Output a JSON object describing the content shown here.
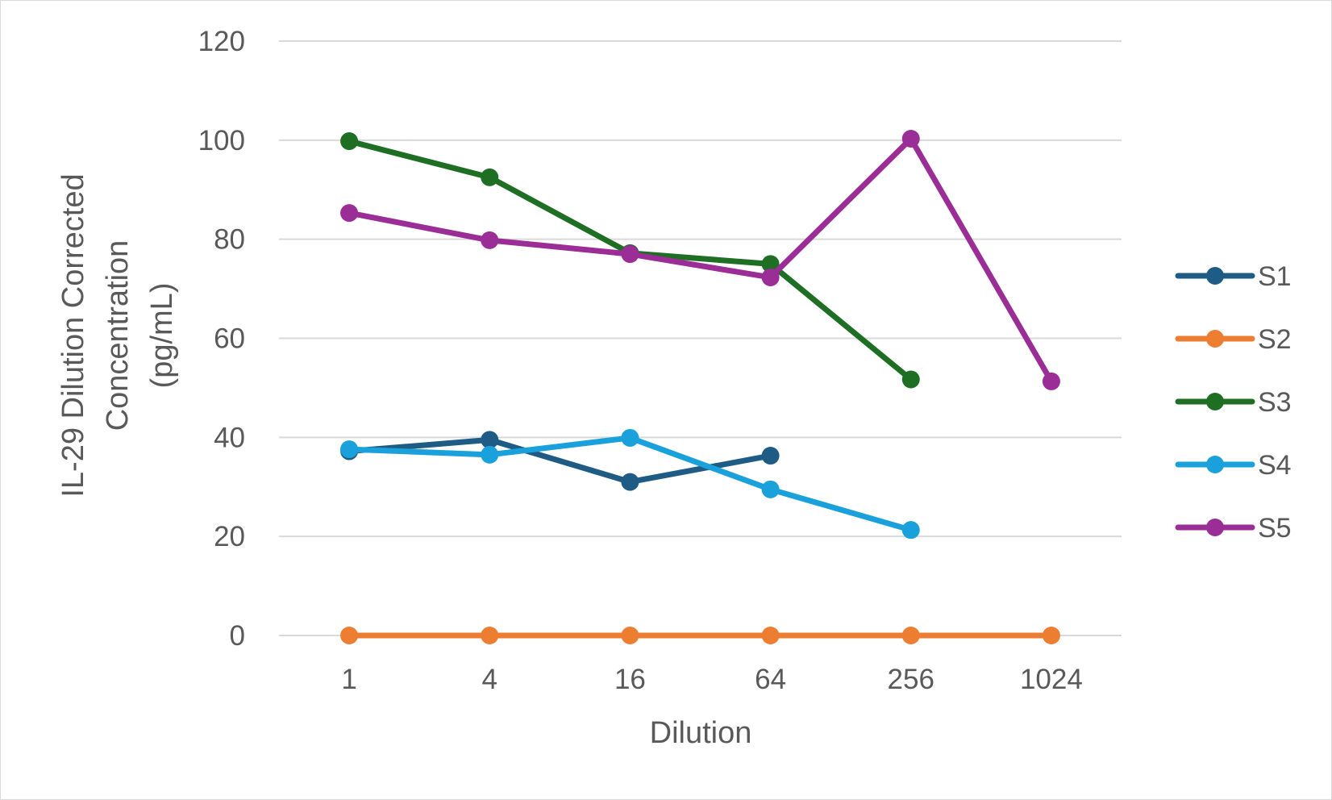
{
  "chart_data": {
    "type": "line",
    "title": "",
    "xlabel": "Dilution",
    "ylabel_lines": [
      "IL-29 Dilution Corrected",
      "Concentration",
      "(pg/mL)"
    ],
    "categories": [
      "1",
      "4",
      "16",
      "64",
      "256",
      "1024"
    ],
    "ylim": [
      0,
      120
    ],
    "yticks": [
      "0",
      "20",
      "40",
      "60",
      "80",
      "100",
      "120"
    ],
    "grid": true,
    "legend_position": "right",
    "series": [
      {
        "name": "S1",
        "color": "#1f5c85",
        "values": [
          37.2,
          39.5,
          31.0,
          36.3,
          null,
          null
        ]
      },
      {
        "name": "S2",
        "color": "#ed7d31",
        "values": [
          0,
          0,
          0,
          0,
          0,
          0
        ]
      },
      {
        "name": "S3",
        "color": "#1e6e24",
        "values": [
          99.8,
          92.5,
          77.2,
          75.0,
          51.7,
          null
        ]
      },
      {
        "name": "S4",
        "color": "#1aa1dc",
        "values": [
          37.6,
          36.5,
          39.9,
          29.5,
          21.3,
          null
        ]
      },
      {
        "name": "S5",
        "color": "#9b2d96",
        "values": [
          85.3,
          79.8,
          77.0,
          72.3,
          100.3,
          51.3
        ]
      }
    ]
  }
}
